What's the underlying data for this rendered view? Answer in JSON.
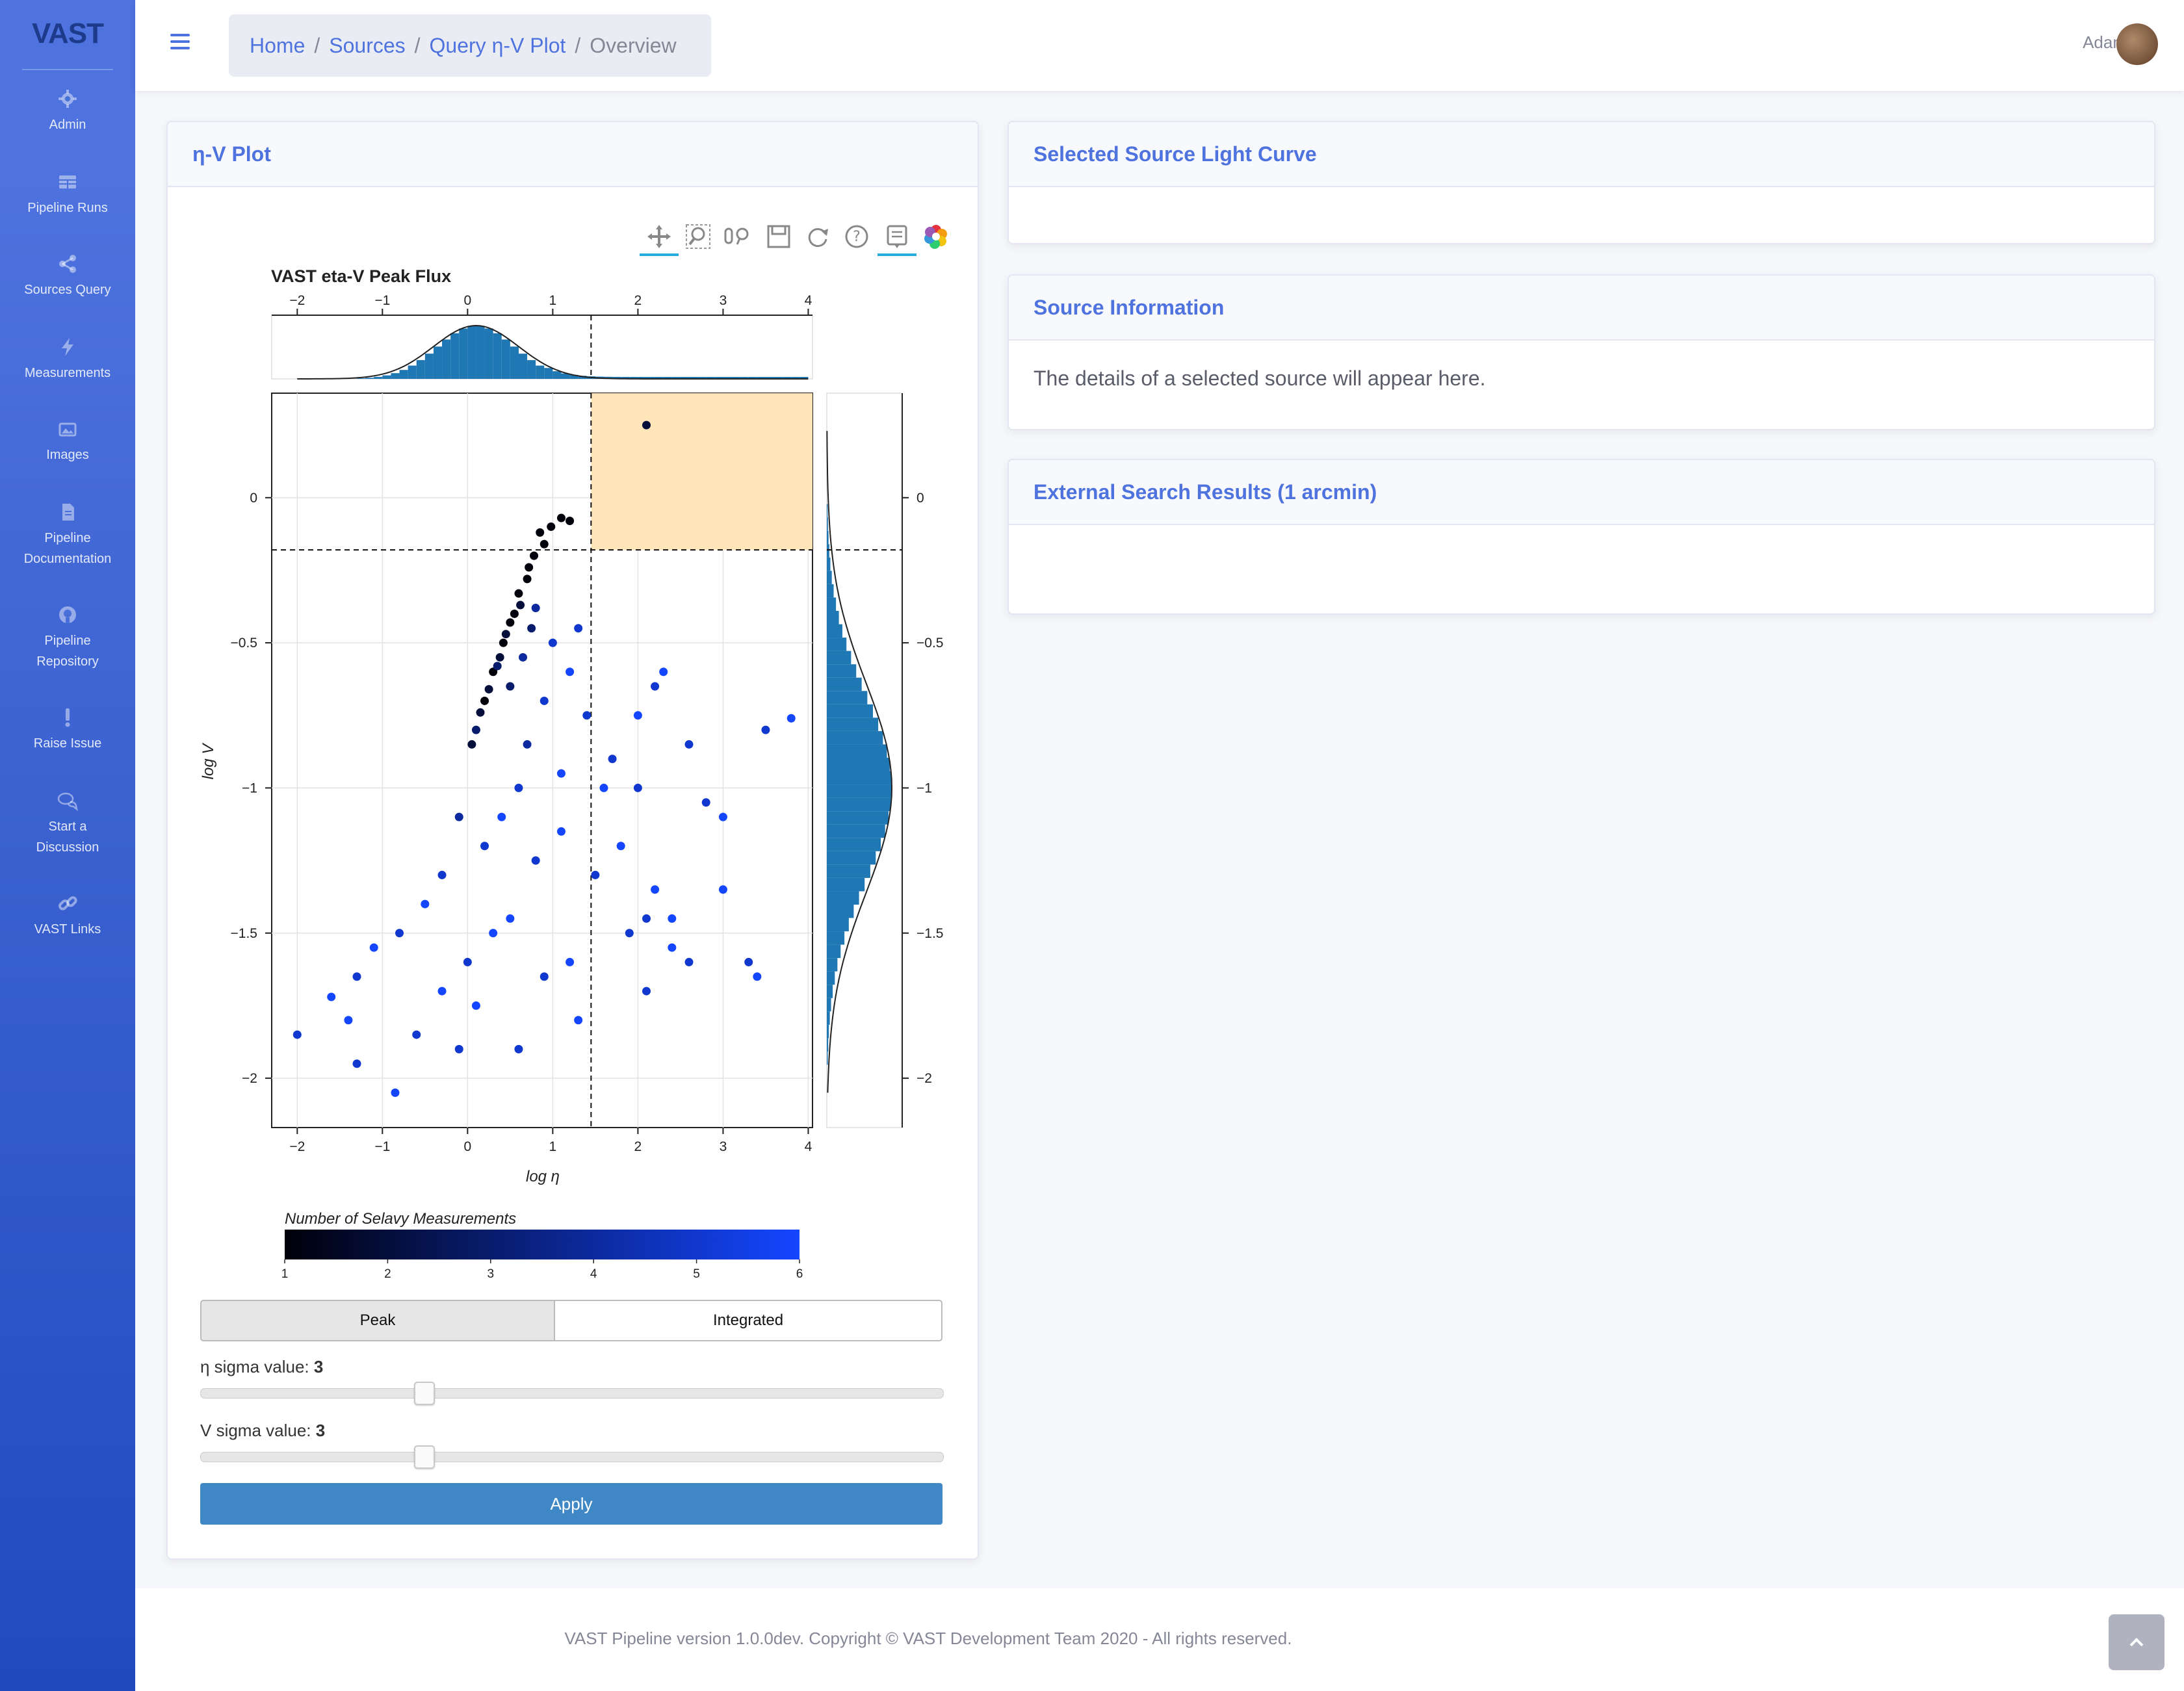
{
  "brand": {
    "logo_text": "VAST"
  },
  "sidebar": {
    "items": [
      {
        "label": "Admin",
        "icon": "gear-icon"
      },
      {
        "label": "Pipeline Runs",
        "icon": "table-icon"
      },
      {
        "label": "Sources Query",
        "icon": "share-icon"
      },
      {
        "label": "Measurements",
        "icon": "bolt-icon"
      },
      {
        "label": "Images",
        "icon": "images-icon"
      },
      {
        "label": "Pipeline Documentation",
        "icon": "file-icon"
      },
      {
        "label": "Pipeline Repository",
        "icon": "github-icon"
      },
      {
        "label": "Raise Issue",
        "icon": "exclamation-icon"
      },
      {
        "label": "Start a Discussion",
        "icon": "comments-icon"
      },
      {
        "label": "VAST Links",
        "icon": "link-icon"
      }
    ]
  },
  "breadcrumb": {
    "home": "Home",
    "sources": "Sources",
    "query": "Query η-V Plot",
    "current": "Overview"
  },
  "user": {
    "name": "Adam"
  },
  "plot_card": {
    "title": "η-V Plot",
    "toggle": {
      "peak": "Peak",
      "integrated": "Integrated",
      "selected": "Peak"
    },
    "eta_label": "η sigma value:",
    "eta_value": "3",
    "v_label": "V sigma value:",
    "v_value": "3",
    "eta_slider_fraction": 0.3,
    "v_slider_fraction": 0.3,
    "apply": "Apply"
  },
  "light_curve_card": {
    "title": "Selected Source Light Curve"
  },
  "source_info_card": {
    "title": "Source Information",
    "body": "The details of a selected source will appear here."
  },
  "external_card": {
    "title": "External Search Results (1 arcmin)"
  },
  "footer": {
    "text": "VAST Pipeline version 1.0.0dev. Copyright © VAST Development Team 2020 - All rights reserved."
  },
  "colors": {
    "accent": "#4e73df",
    "highlight": "#ffe4b3",
    "hist": "#1f77b4"
  },
  "chart_data": {
    "type": "scatter",
    "title": "VAST eta-V Peak Flux",
    "xlabel": "log η",
    "ylabel": "log V",
    "xlim": [
      -2.3,
      4.05
    ],
    "ylim": [
      -2.17,
      0.36
    ],
    "x_ticks": [
      "−2",
      "−1",
      "0",
      "1",
      "2",
      "3",
      "4"
    ],
    "y_ticks": [
      "0",
      "−0.5",
      "−1",
      "−1.5",
      "−2"
    ],
    "eta_threshold": 1.45,
    "v_threshold": -0.18,
    "colorbar": {
      "label": "Number of Selavy Measurements",
      "ticks": [
        "1",
        "2",
        "3",
        "4",
        "5",
        "6"
      ],
      "min": 1,
      "max": 6
    },
    "points": [
      [
        2.1,
        0.25,
        2
      ],
      [
        1.1,
        -0.07,
        1
      ],
      [
        1.2,
        -0.08,
        1
      ],
      [
        0.98,
        -0.1,
        1
      ],
      [
        0.85,
        -0.12,
        1
      ],
      [
        0.9,
        -0.16,
        1
      ],
      [
        0.78,
        -0.2,
        1
      ],
      [
        0.72,
        -0.24,
        1
      ],
      [
        0.7,
        -0.28,
        1
      ],
      [
        0.6,
        -0.33,
        1
      ],
      [
        0.62,
        -0.37,
        2
      ],
      [
        0.55,
        -0.4,
        1
      ],
      [
        0.5,
        -0.43,
        1
      ],
      [
        0.45,
        -0.47,
        2
      ],
      [
        0.42,
        -0.5,
        1
      ],
      [
        0.38,
        -0.55,
        2
      ],
      [
        0.3,
        -0.6,
        1
      ],
      [
        0.35,
        -0.58,
        3
      ],
      [
        0.25,
        -0.66,
        2
      ],
      [
        0.2,
        -0.7,
        1
      ],
      [
        0.15,
        -0.74,
        2
      ],
      [
        0.1,
        -0.8,
        3
      ],
      [
        0.05,
        -0.85,
        2
      ],
      [
        0.8,
        -0.38,
        4
      ],
      [
        1.0,
        -0.5,
        5
      ],
      [
        1.3,
        -0.45,
        5
      ],
      [
        1.2,
        -0.6,
        6
      ],
      [
        0.9,
        -0.7,
        5
      ],
      [
        0.7,
        -0.85,
        4
      ],
      [
        1.4,
        -0.75,
        5
      ],
      [
        1.1,
        -0.95,
        6
      ],
      [
        0.6,
        -1.0,
        5
      ],
      [
        0.4,
        -1.1,
        6
      ],
      [
        0.2,
        -1.2,
        5
      ],
      [
        -0.1,
        -1.1,
        4
      ],
      [
        -0.3,
        -1.3,
        5
      ],
      [
        -0.5,
        -1.4,
        6
      ],
      [
        -0.8,
        -1.5,
        5
      ],
      [
        -1.1,
        -1.55,
        6
      ],
      [
        -1.3,
        -1.65,
        5
      ],
      [
        -1.6,
        -1.72,
        6
      ],
      [
        -2.0,
        -1.85,
        5
      ],
      [
        -1.4,
        -1.8,
        6
      ],
      [
        -1.3,
        -1.95,
        5
      ],
      [
        -0.85,
        -2.05,
        6
      ],
      [
        -0.6,
        -1.85,
        5
      ],
      [
        0.1,
        -1.75,
        6
      ],
      [
        0.6,
        -1.9,
        5
      ],
      [
        1.2,
        -1.6,
        6
      ],
      [
        1.5,
        -1.3,
        5
      ],
      [
        1.8,
        -1.2,
        6
      ],
      [
        2.1,
        -1.45,
        5
      ],
      [
        2.4,
        -1.55,
        6
      ],
      [
        2.6,
        -1.6,
        5
      ],
      [
        3.0,
        -1.35,
        6
      ],
      [
        3.3,
        -1.6,
        5
      ],
      [
        3.4,
        -1.65,
        6
      ],
      [
        2.8,
        -1.05,
        5
      ],
      [
        3.0,
        -1.1,
        6
      ],
      [
        3.5,
        -0.8,
        5
      ],
      [
        3.8,
        -0.76,
        6
      ],
      [
        2.6,
        -0.85,
        5
      ],
      [
        2.3,
        -0.6,
        6
      ],
      [
        2.2,
        -0.65,
        5
      ],
      [
        2.0,
        -0.75,
        6
      ],
      [
        1.7,
        -0.9,
        5
      ],
      [
        1.6,
        -1.0,
        6
      ],
      [
        2.0,
        -1.0,
        5
      ],
      [
        2.2,
        -1.35,
        6
      ],
      [
        1.9,
        -1.5,
        5
      ],
      [
        2.4,
        -1.45,
        6
      ],
      [
        2.1,
        -1.7,
        5
      ],
      [
        1.3,
        -1.8,
        6
      ],
      [
        0.9,
        -1.65,
        5
      ],
      [
        0.3,
        -1.5,
        6
      ],
      [
        0.0,
        -1.6,
        5
      ],
      [
        -0.3,
        -1.7,
        6
      ],
      [
        -0.1,
        -1.9,
        5
      ],
      [
        0.5,
        -1.45,
        6
      ],
      [
        0.8,
        -1.25,
        5
      ],
      [
        1.1,
        -1.15,
        6
      ],
      [
        0.5,
        -0.65,
        3
      ],
      [
        0.65,
        -0.55,
        4
      ],
      [
        0.75,
        -0.45,
        3
      ]
    ]
  }
}
